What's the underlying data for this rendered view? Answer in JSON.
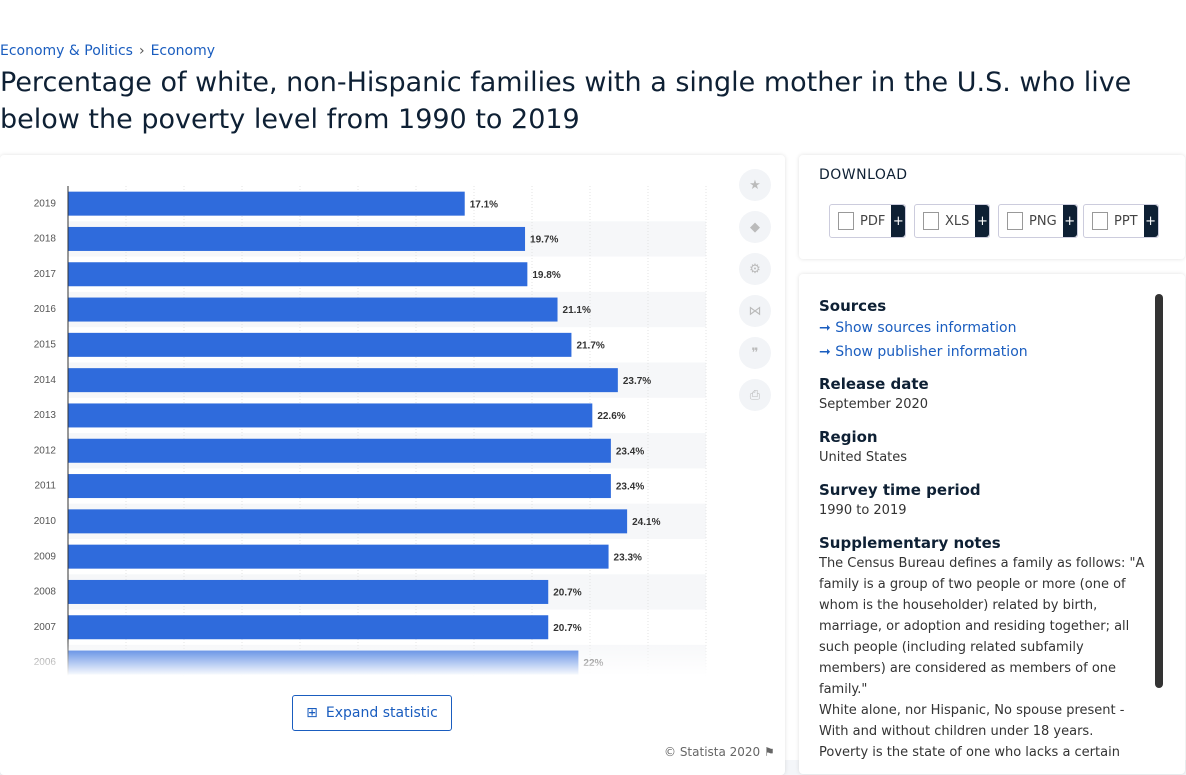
{
  "breadcrumb": [
    "Economy & Politics",
    "Economy"
  ],
  "title": "Percentage of white, non-Hispanic families with a single mother in the U.S. who live below the poverty level from 1990 to 2019",
  "chart_data": {
    "type": "bar",
    "orientation": "horizontal",
    "categories": [
      "2019",
      "2018",
      "2017",
      "2016",
      "2015",
      "2014",
      "2013",
      "2012",
      "2011",
      "2010",
      "2009",
      "2008",
      "2007",
      "2006"
    ],
    "values": [
      17.1,
      19.7,
      19.8,
      21.1,
      21.7,
      23.7,
      22.6,
      23.4,
      23.4,
      24.1,
      23.3,
      20.7,
      20.7,
      22
    ],
    "value_labels": [
      "17.1%",
      "19.7%",
      "19.8%",
      "21.1%",
      "21.7%",
      "23.7%",
      "22.6%",
      "23.4%",
      "23.4%",
      "24.1%",
      "23.3%",
      "20.7%",
      "20.7%",
      "22%"
    ],
    "color": "#2f6bdc",
    "xlim": [
      0,
      27.5
    ],
    "xticks": [
      0,
      2.5,
      5,
      7.5,
      10,
      12.5,
      15,
      17.5,
      20,
      22.5,
      25,
      27.5
    ],
    "grid": true
  },
  "expand_button": "Expand statistic",
  "credit": "© Statista 2020",
  "download": {
    "title": "DOWNLOAD",
    "formats": [
      "PDF",
      "XLS",
      "PNG",
      "PPT"
    ],
    "plus": "+"
  },
  "sidebar": {
    "sources_title": "Sources",
    "links": [
      "Show sources information",
      "Show publisher information"
    ],
    "fields": [
      {
        "label": "Release date",
        "value": "September 2020"
      },
      {
        "label": "Region",
        "value": "United States"
      },
      {
        "label": "Survey time period",
        "value": "1990 to 2019"
      }
    ],
    "notes_title": "Supplementary notes",
    "notes": [
      "The Census Bureau defines a family as follows: \"A family is a group of two people or more (one of whom is the householder) related by birth, marriage, or adoption and residing together; all such people (including related subfamily members) are considered as members of one family.\"",
      "White alone, nor Hispanic, No spouse present - With and without children under 18 years.",
      "Poverty is the state of one who lacks a certain"
    ]
  }
}
